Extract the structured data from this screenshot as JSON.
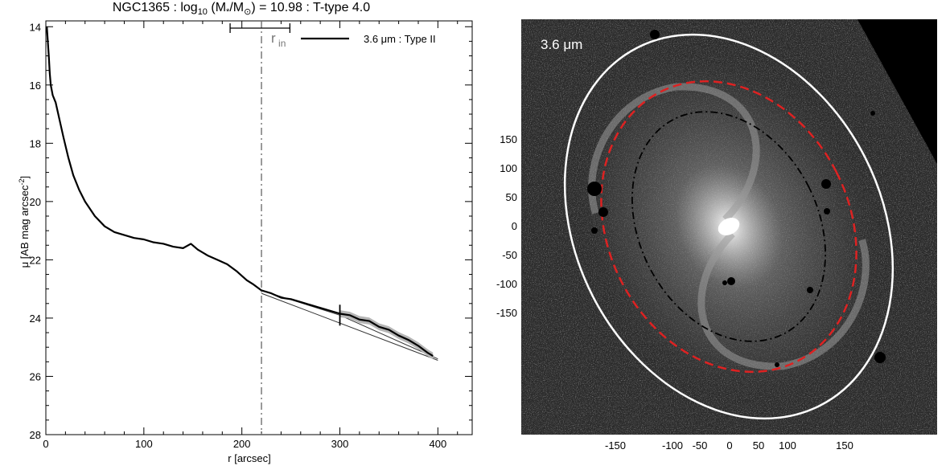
{
  "chart_data": [
    {
      "type": "line",
      "title": {
        "galaxy": "NGC1365",
        "mass_prefix": "log",
        "mass_sub": "10",
        "mass_paren": "(M",
        "mass_star": "*",
        "mass_slash": "/M",
        "mass_sun": "⊙",
        "mass_close": ")",
        "mass_value": "= 10.98",
        "ttype": "T-type 4.0"
      },
      "xlabel": "r [arcsec]",
      "ylabel": "μ [AB mag arcsec",
      "ylabel_exp": "-2",
      "ylabel_close": "]",
      "xlim": [
        0,
        435
      ],
      "ylim": [
        28,
        13.8
      ],
      "y_inverted": true,
      "xticks": [
        0,
        100,
        200,
        300,
        400
      ],
      "yticks": [
        14,
        16,
        18,
        20,
        22,
        24,
        26,
        28
      ],
      "legend": {
        "label": "3.6 μm : Type II",
        "placement": "top-right"
      },
      "r_in": {
        "label": "r",
        "sub": "in",
        "value": 220,
        "range": [
          188,
          249
        ]
      },
      "break_marker": {
        "x": 300,
        "y": 23.9
      },
      "series": [
        {
          "name": "3.6 μm : Type II",
          "x": [
            1,
            2,
            3,
            4,
            5,
            7,
            10,
            14,
            18,
            23,
            28,
            34,
            40,
            50,
            60,
            70,
            80,
            90,
            100,
            110,
            120,
            130,
            140,
            148,
            155,
            165,
            175,
            185,
            195,
            205,
            212,
            220,
            230,
            240,
            250,
            260,
            270,
            280,
            290,
            300,
            310,
            320,
            330,
            340,
            350,
            360,
            370,
            380,
            390,
            395
          ],
          "y": [
            14.0,
            14.5,
            15.0,
            15.6,
            16.0,
            16.35,
            16.6,
            17.2,
            17.8,
            18.5,
            19.1,
            19.6,
            20.0,
            20.5,
            20.85,
            21.05,
            21.15,
            21.25,
            21.3,
            21.4,
            21.45,
            21.55,
            21.6,
            21.45,
            21.65,
            21.85,
            22.0,
            22.15,
            22.4,
            22.7,
            22.85,
            23.05,
            23.15,
            23.3,
            23.35,
            23.45,
            23.55,
            23.65,
            23.75,
            23.85,
            23.9,
            24.05,
            24.1,
            24.3,
            24.4,
            24.6,
            24.75,
            24.95,
            25.2,
            25.3
          ]
        }
      ],
      "fits": [
        {
          "x": [
            220,
            300
          ],
          "y": [
            23.05,
            23.9
          ]
        },
        {
          "x": [
            220,
            400
          ],
          "y": [
            23.15,
            25.45
          ]
        },
        {
          "x": [
            300,
            400
          ],
          "y": [
            23.9,
            25.4
          ]
        }
      ]
    },
    {
      "type": "image",
      "label": "3.6 μm",
      "yticks": [
        150,
        100,
        50,
        0,
        -50,
        -100,
        -150
      ],
      "xticks": [
        -150,
        -100,
        -50,
        0,
        50,
        100,
        150
      ],
      "colors": {
        "outer_ellipse": "#ffffff",
        "dashed_ellipse": "#dd2222",
        "inner_ellipse": "#000000",
        "background": "#2b2b2b"
      }
    }
  ]
}
